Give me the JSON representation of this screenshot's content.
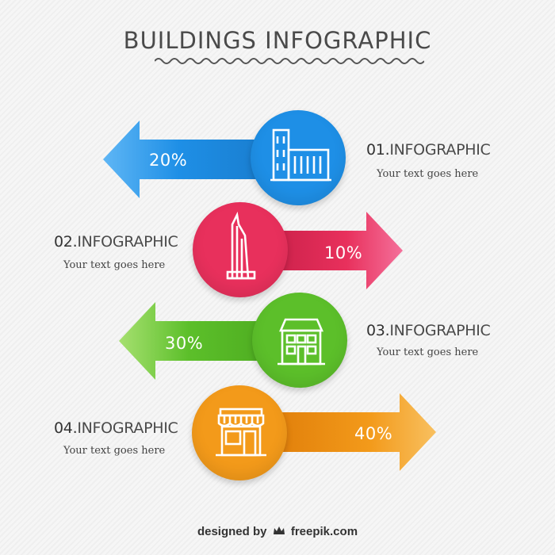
{
  "title": "BUILDINGS INFOGRAPHIC",
  "colors": {
    "blue": "#1e8fe6",
    "red": "#e8305c",
    "green": "#5cbf2a",
    "orange": "#f39a1a",
    "text": "#4a4a4a"
  },
  "items": [
    {
      "number": "01.",
      "heading": "INFOGRAPHIC",
      "subtitle": "Your text goes here",
      "percent": "20%",
      "icon": "office-buildings-icon",
      "color": "#1e8fe6",
      "direction": "left"
    },
    {
      "number": "02.",
      "heading": "INFOGRAPHIC",
      "subtitle": "Your text goes here",
      "percent": "10%",
      "icon": "skyscraper-icon",
      "color": "#e8305c",
      "direction": "right"
    },
    {
      "number": "03.",
      "heading": "INFOGRAPHIC",
      "subtitle": "Your text goes here",
      "percent": "30%",
      "icon": "house-icon",
      "color": "#5cbf2a",
      "direction": "left"
    },
    {
      "number": "04.",
      "heading": "INFOGRAPHIC",
      "subtitle": "Your text goes here",
      "percent": "40%",
      "icon": "shop-icon",
      "color": "#f39a1a",
      "direction": "right"
    }
  ],
  "footer": {
    "designed": "designed by",
    "brand": "freepik.com"
  }
}
